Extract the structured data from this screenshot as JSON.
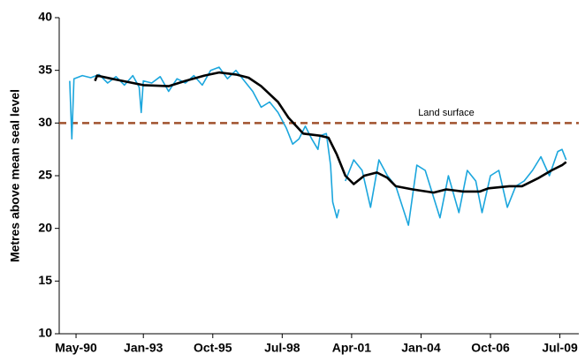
{
  "chart_data": {
    "type": "line",
    "y_label": "Metres above mean seal level",
    "xlim": [
      "1989-09",
      "2010-04"
    ],
    "xticks": [
      {
        "value": "1990-05",
        "label": "May-90"
      },
      {
        "value": "1993-01",
        "label": "Jan-93"
      },
      {
        "value": "1995-10",
        "label": "Oct-95"
      },
      {
        "value": "1998-07",
        "label": "Jul-98"
      },
      {
        "value": "2001-04",
        "label": "Apr-01"
      },
      {
        "value": "2004-01",
        "label": "Jan-04"
      },
      {
        "value": "2006-10",
        "label": "Oct-06"
      },
      {
        "value": "2009-07",
        "label": "Jul-09"
      }
    ],
    "ylim": [
      10,
      40
    ],
    "yticks": [
      10,
      15,
      20,
      25,
      30,
      35,
      40
    ],
    "reference_line": {
      "value": 30,
      "label": "Land surface",
      "color": "#a0522d"
    },
    "series": [
      {
        "color": "#1ba6dd",
        "width": 1.6,
        "x": [
          "1990-02",
          "1990-03",
          "1990-04",
          "1990-08",
          "1990-12",
          "1991-04",
          "1991-08",
          "1991-12",
          "1992-04",
          "1992-08",
          "1992-11",
          "1992-12",
          "1993-01",
          "1993-05",
          "1993-09",
          "1994-01",
          "1994-05",
          "1994-09",
          "1995-01",
          "1995-05",
          "1995-09",
          "1996-01",
          "1996-05",
          "1996-09",
          "1997-01",
          "1997-05",
          "1997-09",
          "1998-01",
          "1998-05",
          "1998-09",
          "1998-12",
          "1999-03",
          "1999-06",
          "1999-09",
          "1999-12",
          "2000-01",
          "2000-04",
          "2000-06",
          "2000-07",
          "2000-09",
          "2000-10",
          "2000-11",
          "2001-01",
          "2001-05",
          "2001-09",
          "2002-01",
          "2002-05",
          "2002-09",
          "2003-01",
          "2003-07",
          "2003-11",
          "2004-03",
          "2004-10",
          "2005-02",
          "2005-07",
          "2005-11",
          "2006-03",
          "2006-06",
          "2006-10",
          "2007-02",
          "2007-06",
          "2007-10",
          "2008-02",
          "2008-06",
          "2008-10",
          "2009-02",
          "2009-06",
          "2009-08",
          "2009-10"
        ],
        "values": [
          34.0,
          28.5,
          34.2,
          34.5,
          34.3,
          34.6,
          33.8,
          34.4,
          33.6,
          34.5,
          33.4,
          31.0,
          34.0,
          33.8,
          34.4,
          33.0,
          34.2,
          33.8,
          34.5,
          33.6,
          35.0,
          35.3,
          34.2,
          35.0,
          34.0,
          33.0,
          31.5,
          32.0,
          31.0,
          29.5,
          28.0,
          28.5,
          29.7,
          28.5,
          27.5,
          28.8,
          29.0,
          26.0,
          22.5,
          21.0,
          21.8,
          null,
          24.5,
          26.5,
          25.5,
          22.0,
          26.5,
          25.0,
          24.0,
          20.3,
          26.0,
          25.5,
          21.0,
          25.0,
          21.5,
          25.5,
          24.5,
          21.5,
          25.0,
          25.5,
          22.0,
          24.0,
          24.5,
          25.5,
          26.8,
          25.0,
          27.3,
          27.5,
          26.5
        ]
      },
      {
        "color": "#000000",
        "width": 2.6,
        "x": [
          "1991-02",
          "1991-03",
          "1991-10",
          "1993-01",
          "1994-01",
          "1994-09",
          "1995-06",
          "1996-01",
          "1996-09",
          "1997-03",
          "1997-09",
          "1998-05",
          "1998-10",
          "1999-05",
          "2000-01",
          "2000-05",
          "2000-09",
          "2001-01",
          "2001-05",
          "2001-10",
          "2002-04",
          "2002-09",
          "2003-01",
          "2003-09",
          "2004-07",
          "2005-01",
          "2005-09",
          "2006-05",
          "2006-09",
          "2007-07",
          "2008-01",
          "2008-09",
          "2009-03",
          "2009-08",
          "2009-10"
        ],
        "values": [
          34.0,
          34.5,
          34.2,
          33.6,
          33.5,
          34.0,
          34.5,
          34.8,
          34.6,
          34.3,
          33.5,
          32.0,
          30.5,
          29.0,
          28.8,
          28.6,
          27.0,
          25.0,
          24.2,
          25.0,
          25.3,
          24.8,
          24.0,
          23.7,
          23.4,
          23.7,
          23.5,
          23.5,
          23.8,
          24.0,
          24.0,
          24.8,
          25.5,
          26.0,
          26.3
        ]
      }
    ]
  }
}
